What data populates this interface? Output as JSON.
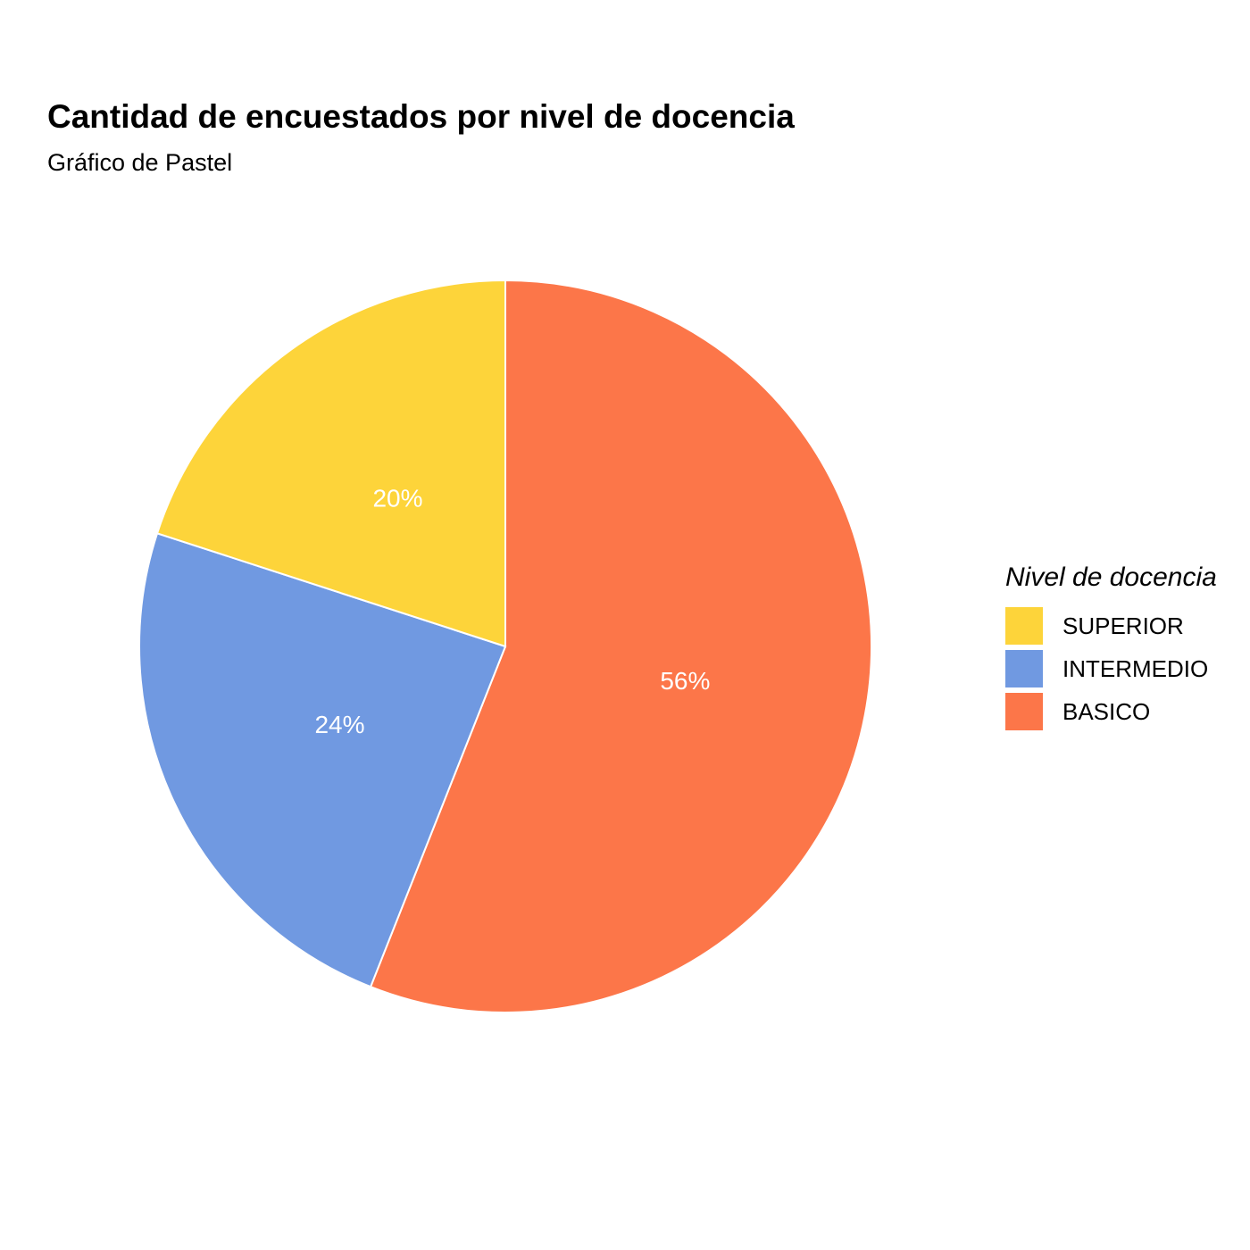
{
  "chart_data": {
    "type": "pie",
    "title": "Cantidad de encuestados por nivel de docencia",
    "subtitle": "Gráfico de Pastel",
    "legend": {
      "title": "Nivel de docencia",
      "placement": "right"
    },
    "slices": [
      {
        "category": "BASICO",
        "value": 56,
        "label": "56%",
        "color": "#FC7649"
      },
      {
        "category": "INTERMEDIO",
        "value": 24,
        "label": "24%",
        "color": "#7099E1"
      },
      {
        "category": "SUPERIOR",
        "value": 20,
        "label": "20%",
        "color": "#FDD43A"
      }
    ],
    "legend_order": [
      "SUPERIOR",
      "INTERMEDIO",
      "BASICO"
    ]
  }
}
